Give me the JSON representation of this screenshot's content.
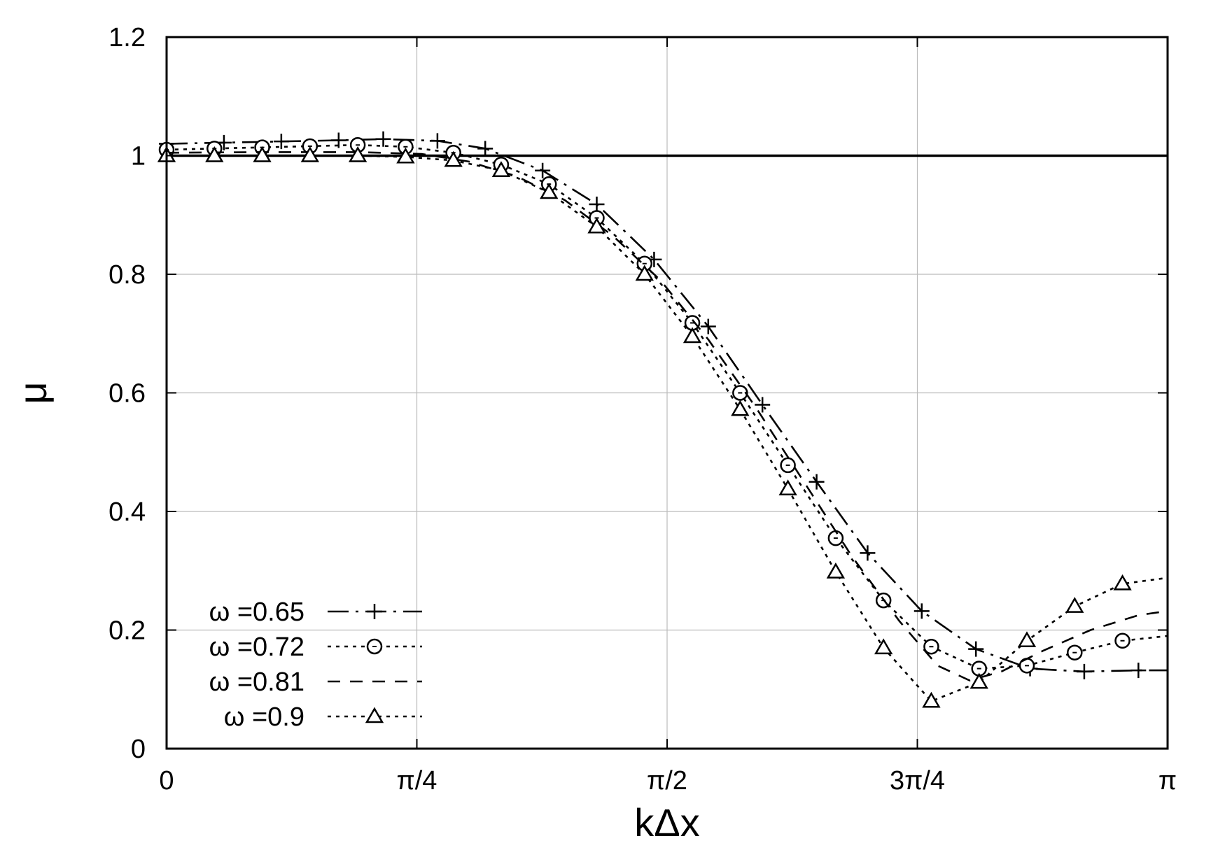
{
  "chart_data": {
    "type": "line",
    "xlabel": "kΔx",
    "ylabel": "μ",
    "xlim": [
      0,
      3.14159
    ],
    "ylim": [
      0,
      1.2
    ],
    "grid": true,
    "legend_position": "bottom-left",
    "x_ticks": [
      {
        "value": 0,
        "label": "0"
      },
      {
        "value": 0.785398,
        "label": "π/4"
      },
      {
        "value": 1.570796,
        "label": "π/2"
      },
      {
        "value": 2.356194,
        "label": "3π/4"
      },
      {
        "value": 3.141593,
        "label": "π"
      }
    ],
    "y_ticks": [
      {
        "value": 0,
        "label": "0"
      },
      {
        "value": 0.2,
        "label": "0.2"
      },
      {
        "value": 0.4,
        "label": "0.4"
      },
      {
        "value": 0.6,
        "label": "0.6"
      },
      {
        "value": 0.8,
        "label": "0.8"
      },
      {
        "value": 1.0,
        "label": "1"
      },
      {
        "value": 1.2,
        "label": "1.2"
      }
    ],
    "reference_line": {
      "y": 1.0
    },
    "series": [
      {
        "name": "ω =0.65",
        "marker": "plus",
        "dash": "long-dash-dot",
        "points": [
          [
            0,
            1.02
          ],
          [
            0.18,
            1.022
          ],
          [
            0.36,
            1.024
          ],
          [
            0.54,
            1.026
          ],
          [
            0.68,
            1.028
          ],
          [
            0.85,
            1.025
          ],
          [
            1.0,
            1.012
          ],
          [
            1.18,
            0.975
          ],
          [
            1.35,
            0.918
          ],
          [
            1.53,
            0.825
          ],
          [
            1.7,
            0.712
          ],
          [
            1.87,
            0.58
          ],
          [
            2.04,
            0.45
          ],
          [
            2.2,
            0.33
          ],
          [
            2.37,
            0.232
          ],
          [
            2.54,
            0.168
          ],
          [
            2.71,
            0.135
          ],
          [
            2.88,
            0.13
          ],
          [
            3.05,
            0.132
          ],
          [
            3.14,
            0.132
          ]
        ]
      },
      {
        "name": "ω =0.72",
        "marker": "circle",
        "dash": "dotted",
        "points": [
          [
            0,
            1.01
          ],
          [
            0.15,
            1.012
          ],
          [
            0.3,
            1.014
          ],
          [
            0.45,
            1.016
          ],
          [
            0.6,
            1.018
          ],
          [
            0.75,
            1.015
          ],
          [
            0.9,
            1.005
          ],
          [
            1.05,
            0.985
          ],
          [
            1.2,
            0.952
          ],
          [
            1.35,
            0.895
          ],
          [
            1.5,
            0.818
          ],
          [
            1.65,
            0.718
          ],
          [
            1.8,
            0.6
          ],
          [
            1.95,
            0.478
          ],
          [
            2.1,
            0.355
          ],
          [
            2.25,
            0.25
          ],
          [
            2.4,
            0.172
          ],
          [
            2.55,
            0.135
          ],
          [
            2.7,
            0.14
          ],
          [
            2.85,
            0.162
          ],
          [
            3.0,
            0.182
          ],
          [
            3.14,
            0.19
          ]
        ]
      },
      {
        "name": "ω =0.81",
        "marker": "none",
        "dash": "dashed",
        "points": [
          [
            0,
            1.005
          ],
          [
            0.3,
            1.006
          ],
          [
            0.6,
            1.006
          ],
          [
            0.8,
            1.003
          ],
          [
            0.95,
            0.99
          ],
          [
            1.1,
            0.965
          ],
          [
            1.25,
            0.925
          ],
          [
            1.4,
            0.865
          ],
          [
            1.55,
            0.79
          ],
          [
            1.7,
            0.69
          ],
          [
            1.85,
            0.575
          ],
          [
            2.0,
            0.45
          ],
          [
            2.15,
            0.325
          ],
          [
            2.3,
            0.215
          ],
          [
            2.42,
            0.14
          ],
          [
            2.52,
            0.115
          ],
          [
            2.62,
            0.13
          ],
          [
            2.75,
            0.165
          ],
          [
            2.9,
            0.2
          ],
          [
            3.05,
            0.225
          ],
          [
            3.14,
            0.232
          ]
        ]
      },
      {
        "name": "ω =0.9",
        "marker": "triangle",
        "dash": "dotted",
        "points": [
          [
            0,
            1.0
          ],
          [
            0.15,
            1.0
          ],
          [
            0.3,
            1.0
          ],
          [
            0.45,
            1.0
          ],
          [
            0.6,
            1.0
          ],
          [
            0.75,
            0.998
          ],
          [
            0.9,
            0.992
          ],
          [
            1.05,
            0.975
          ],
          [
            1.2,
            0.938
          ],
          [
            1.35,
            0.88
          ],
          [
            1.5,
            0.8
          ],
          [
            1.65,
            0.695
          ],
          [
            1.8,
            0.572
          ],
          [
            1.95,
            0.438
          ],
          [
            2.1,
            0.298
          ],
          [
            2.25,
            0.17
          ],
          [
            2.4,
            0.08
          ],
          [
            2.55,
            0.112
          ],
          [
            2.7,
            0.182
          ],
          [
            2.85,
            0.24
          ],
          [
            3.0,
            0.278
          ],
          [
            3.14,
            0.288
          ]
        ]
      }
    ]
  }
}
